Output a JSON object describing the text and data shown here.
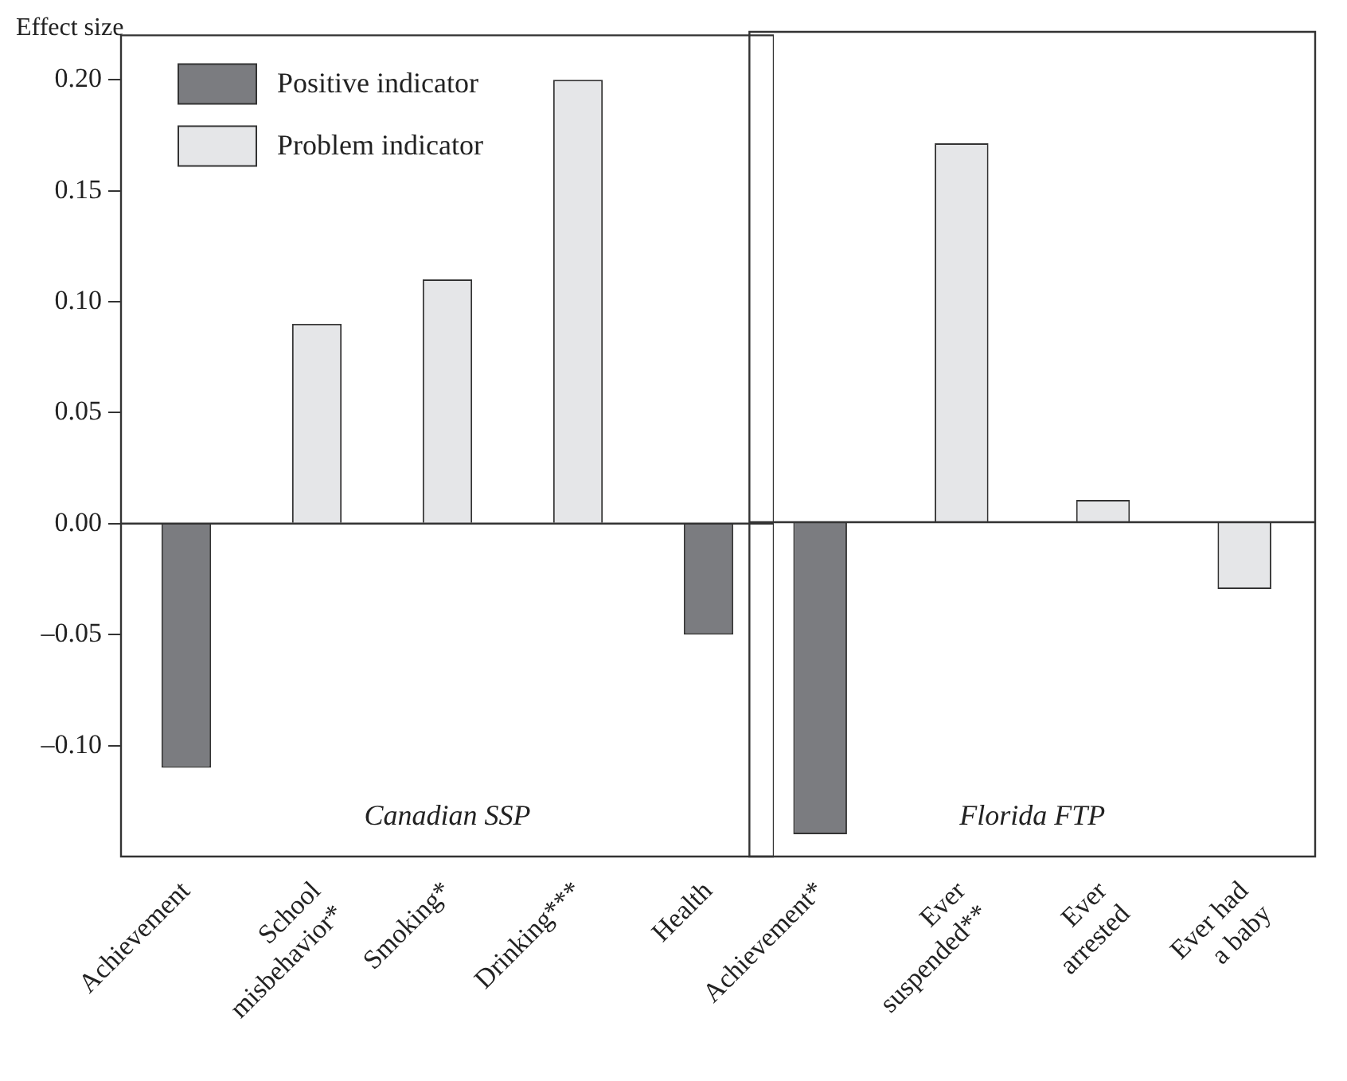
{
  "chart_data": [
    {
      "type": "bar",
      "ylabel": "Effect size",
      "categories": [
        "Achievement",
        "School\nmisbehavior*",
        "Smoking*",
        "Drinking***",
        "Health"
      ],
      "series": [
        {
          "name": "Positive indicator",
          "color": "#7b7c80",
          "values": [
            -0.11,
            null,
            null,
            null,
            -0.05
          ]
        },
        {
          "name": "Problem indicator",
          "color": "#e5e6e8",
          "values": [
            null,
            0.09,
            0.11,
            0.2,
            null
          ]
        }
      ],
      "ylim": [
        -0.15,
        0.22
      ],
      "yticks": [
        {
          "value": -0.1,
          "label": "–0.10"
        },
        {
          "value": -0.05,
          "label": "–0.05"
        },
        {
          "value": 0,
          "label": "0.00"
        },
        {
          "value": 0.05,
          "label": "0.05"
        },
        {
          "value": 0.1,
          "label": "0.10"
        },
        {
          "value": 0.15,
          "label": "0.15"
        },
        {
          "value": 0.2,
          "label": "0.20"
        }
      ],
      "ref_lines": [
        {
          "axis": "y",
          "value": 0
        }
      ],
      "annotations": [
        "Canadian SSP"
      ],
      "legend": "top left",
      "grid": false
    },
    {
      "type": "bar",
      "categories": [
        "Achievement*",
        "Ever\nsuspended**",
        "Ever\narrested",
        "Ever had\na baby"
      ],
      "series": [
        {
          "color": "#7b7c80",
          "values": [
            -0.14,
            null,
            null,
            null
          ]
        },
        {
          "color": "#e5e6e8",
          "values": [
            null,
            0.17,
            0.01,
            -0.03
          ]
        }
      ],
      "ylim": [
        -0.15,
        0.22
      ],
      "ref_lines": [
        {
          "axis": "y",
          "value": 0
        }
      ],
      "annotations": [
        "Florida FTP"
      ],
      "tick_labels": "x",
      "legend": false,
      "grid": false
    }
  ]
}
